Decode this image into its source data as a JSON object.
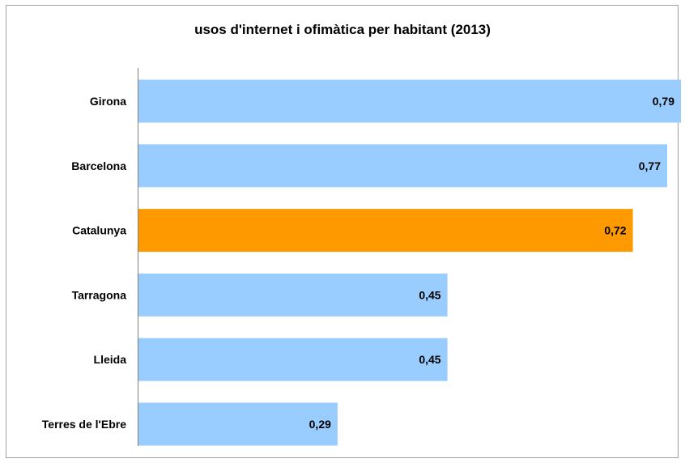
{
  "chart_data": {
    "type": "bar",
    "orientation": "horizontal",
    "title": "usos d'internet i ofimàtica per habitant (2013)",
    "categories": [
      "Girona",
      "Barcelona",
      "Catalunya",
      "Tarragona",
      "Lleida",
      "Terres de l'Ebre"
    ],
    "values": [
      0.79,
      0.77,
      0.72,
      0.45,
      0.45,
      0.29
    ],
    "value_labels": [
      "0,79",
      "0,77",
      "0,72",
      "0,45",
      "0,45",
      "0,29"
    ],
    "xlim": [
      0,
      0.79
    ],
    "grid": false,
    "legend": "none",
    "colors": {
      "default_bar": "#99ccff",
      "highlight_bar": "#ff9900",
      "highlight_category": "Catalunya",
      "axis": "#808080",
      "frame": "#a0a0a0"
    }
  }
}
